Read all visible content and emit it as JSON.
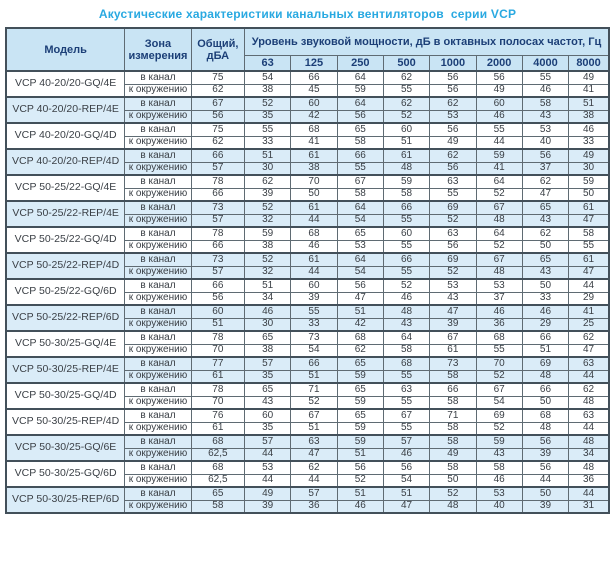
{
  "title": "Акустические характеристики канальных вентиляторов  серии VCP",
  "colors": {
    "title-accent": "#29a9e1",
    "header-bg": "#c9e4f4",
    "stripe-bg": "#daecf8",
    "border-dark": "#43505a",
    "header-text": "#1c3f77",
    "cell-text": "#3a3f45"
  },
  "table": {
    "headers": {
      "model": "Модель",
      "zone": "Зона измерения",
      "total": "Общий, дБА",
      "band_group": "Уровень звуковой мощности, дБ в октавных полосах частот, Гц",
      "frequencies": [
        "63",
        "125",
        "250",
        "500",
        "1000",
        "2000",
        "4000",
        "8000"
      ]
    },
    "zone_labels": {
      "duct": "в канал",
      "ambient": "к окружению"
    },
    "rows": [
      {
        "model": "VCP 40-20/20-GQ/4E",
        "shaded": false,
        "duct": {
          "total": "75",
          "bands": [
            "54",
            "66",
            "64",
            "62",
            "56",
            "56",
            "55",
            "49"
          ]
        },
        "ambient": {
          "total": "62",
          "bands": [
            "38",
            "45",
            "59",
            "55",
            "56",
            "49",
            "46",
            "41"
          ]
        }
      },
      {
        "model": "VCP 40-20/20-REP/4E",
        "shaded": true,
        "duct": {
          "total": "67",
          "bands": [
            "52",
            "60",
            "64",
            "62",
            "62",
            "60",
            "58",
            "51"
          ]
        },
        "ambient": {
          "total": "56",
          "bands": [
            "35",
            "42",
            "56",
            "52",
            "53",
            "46",
            "43",
            "38"
          ]
        }
      },
      {
        "model": "VCP 40-20/20-GQ/4D",
        "shaded": false,
        "duct": {
          "total": "75",
          "bands": [
            "55",
            "68",
            "65",
            "60",
            "56",
            "55",
            "53",
            "46"
          ]
        },
        "ambient": {
          "total": "62",
          "bands": [
            "33",
            "41",
            "58",
            "51",
            "49",
            "44",
            "40",
            "33"
          ]
        }
      },
      {
        "model": "VCP 40-20/20-REP/4D",
        "shaded": true,
        "duct": {
          "total": "66",
          "bands": [
            "51",
            "61",
            "66",
            "61",
            "62",
            "59",
            "56",
            "49"
          ]
        },
        "ambient": {
          "total": "57",
          "bands": [
            "30",
            "38",
            "55",
            "48",
            "56",
            "41",
            "37",
            "30"
          ]
        }
      },
      {
        "model": "VCP 50-25/22-GQ/4E",
        "shaded": false,
        "duct": {
          "total": "78",
          "bands": [
            "62",
            "70",
            "67",
            "59",
            "63",
            "64",
            "62",
            "59"
          ]
        },
        "ambient": {
          "total": "66",
          "bands": [
            "39",
            "50",
            "58",
            "58",
            "55",
            "52",
            "47",
            "50"
          ]
        }
      },
      {
        "model": "VCP 50-25/22-REP/4E",
        "shaded": true,
        "duct": {
          "total": "73",
          "bands": [
            "52",
            "61",
            "64",
            "66",
            "69",
            "67",
            "65",
            "61"
          ]
        },
        "ambient": {
          "total": "57",
          "bands": [
            "32",
            "44",
            "54",
            "55",
            "52",
            "48",
            "43",
            "47"
          ]
        }
      },
      {
        "model": "VCP 50-25/22-GQ/4D",
        "shaded": false,
        "duct": {
          "total": "78",
          "bands": [
            "59",
            "68",
            "65",
            "60",
            "63",
            "64",
            "62",
            "58"
          ]
        },
        "ambient": {
          "total": "66",
          "bands": [
            "38",
            "46",
            "53",
            "55",
            "56",
            "52",
            "50",
            "55"
          ]
        }
      },
      {
        "model": "VCP 50-25/22-REP/4D",
        "shaded": true,
        "duct": {
          "total": "73",
          "bands": [
            "52",
            "61",
            "64",
            "66",
            "69",
            "67",
            "65",
            "61"
          ]
        },
        "ambient": {
          "total": "57",
          "bands": [
            "32",
            "44",
            "54",
            "55",
            "52",
            "48",
            "43",
            "47"
          ]
        }
      },
      {
        "model": "VCP 50-25/22-GQ/6D",
        "shaded": false,
        "duct": {
          "total": "66",
          "bands": [
            "51",
            "60",
            "56",
            "52",
            "53",
            "53",
            "50",
            "44"
          ]
        },
        "ambient": {
          "total": "56",
          "bands": [
            "34",
            "39",
            "47",
            "46",
            "43",
            "37",
            "33",
            "29"
          ]
        }
      },
      {
        "model": "VCP 50-25/22-REP/6D",
        "shaded": true,
        "duct": {
          "total": "60",
          "bands": [
            "46",
            "55",
            "51",
            "48",
            "47",
            "46",
            "46",
            "41"
          ]
        },
        "ambient": {
          "total": "51",
          "bands": [
            "30",
            "33",
            "42",
            "43",
            "39",
            "36",
            "29",
            "25"
          ]
        }
      },
      {
        "model": "VCP 50-30/25-GQ/4E",
        "shaded": false,
        "duct": {
          "total": "78",
          "bands": [
            "65",
            "73",
            "68",
            "64",
            "67",
            "68",
            "66",
            "62"
          ]
        },
        "ambient": {
          "total": "70",
          "bands": [
            "38",
            "54",
            "62",
            "58",
            "61",
            "55",
            "51",
            "47"
          ]
        }
      },
      {
        "model": "VCP 50-30/25-REP/4E",
        "shaded": true,
        "duct": {
          "total": "77",
          "bands": [
            "57",
            "66",
            "65",
            "68",
            "73",
            "70",
            "69",
            "63"
          ]
        },
        "ambient": {
          "total": "61",
          "bands": [
            "35",
            "51",
            "59",
            "55",
            "58",
            "52",
            "48",
            "44"
          ]
        }
      },
      {
        "model": "VCP 50-30/25-GQ/4D",
        "shaded": false,
        "duct": {
          "total": "78",
          "bands": [
            "65",
            "71",
            "65",
            "63",
            "66",
            "67",
            "66",
            "62"
          ]
        },
        "ambient": {
          "total": "70",
          "bands": [
            "43",
            "52",
            "59",
            "55",
            "58",
            "54",
            "50",
            "48"
          ]
        }
      },
      {
        "model": "VCP 50-30/25-REP/4D",
        "shaded": false,
        "duct": {
          "total": "76",
          "bands": [
            "60",
            "67",
            "65",
            "67",
            "71",
            "69",
            "68",
            "63"
          ]
        },
        "ambient": {
          "total": "61",
          "bands": [
            "35",
            "51",
            "59",
            "55",
            "58",
            "52",
            "48",
            "44"
          ]
        }
      },
      {
        "model": "VCP 50-30/25-GQ/6E",
        "shaded": true,
        "duct": {
          "total": "68",
          "bands": [
            "57",
            "63",
            "59",
            "57",
            "58",
            "59",
            "56",
            "48"
          ]
        },
        "ambient": {
          "total": "62,5",
          "bands": [
            "44",
            "47",
            "51",
            "46",
            "49",
            "43",
            "39",
            "34"
          ]
        }
      },
      {
        "model": "VCP 50-30/25-GQ/6D",
        "shaded": false,
        "duct": {
          "total": "68",
          "bands": [
            "53",
            "62",
            "56",
            "56",
            "58",
            "58",
            "56",
            "48"
          ]
        },
        "ambient": {
          "total": "62,5",
          "bands": [
            "44",
            "44",
            "52",
            "54",
            "50",
            "46",
            "44",
            "36"
          ]
        }
      },
      {
        "model": "VCP 50-30/25-REP/6D",
        "shaded": true,
        "duct": {
          "total": "65",
          "bands": [
            "49",
            "57",
            "51",
            "51",
            "52",
            "53",
            "50",
            "44"
          ]
        },
        "ambient": {
          "total": "58",
          "bands": [
            "39",
            "36",
            "46",
            "47",
            "48",
            "40",
            "39",
            "31"
          ]
        }
      }
    ]
  }
}
